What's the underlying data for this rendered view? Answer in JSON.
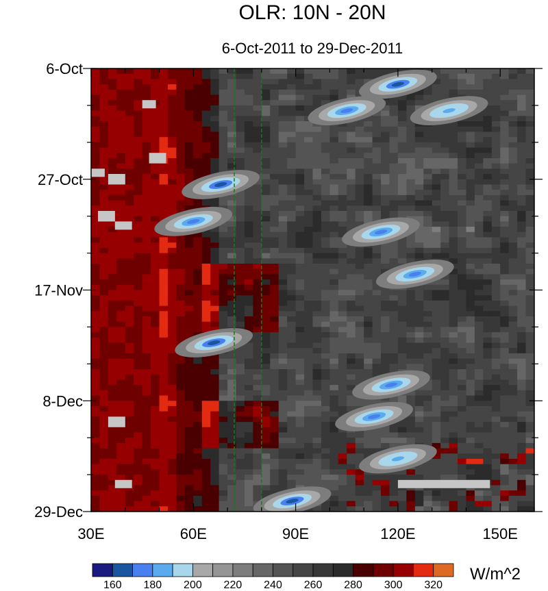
{
  "chart_data": {
    "type": "heatmap",
    "title": "OLR: 10N - 20N",
    "subtitle": "6-Oct-2011 to 29-Dec-2011",
    "x_axis": {
      "range": [
        30,
        160
      ],
      "ticks": [
        {
          "value": 30,
          "label": "30E"
        },
        {
          "value": 60,
          "label": "60E"
        },
        {
          "value": 90,
          "label": "90E"
        },
        {
          "value": 120,
          "label": "120E"
        },
        {
          "value": 150,
          "label": "150E"
        }
      ]
    },
    "y_axis": {
      "range": [
        "2011-10-06",
        "2011-12-29"
      ],
      "ticks": [
        {
          "value": "2011-10-06",
          "label": "6-Oct"
        },
        {
          "value": "2011-10-27",
          "label": "27-Oct"
        },
        {
          "value": "2011-11-17",
          "label": "17-Nov"
        },
        {
          "value": "2011-12-08",
          "label": "8-Dec"
        },
        {
          "value": "2011-12-29",
          "label": "29-Dec"
        }
      ]
    },
    "reference_lines": [
      {
        "axis": "x",
        "value": 72,
        "style": "dashed",
        "color": "#1a7a1a"
      },
      {
        "axis": "x",
        "value": 80,
        "style": "dashed",
        "color": "#1a7a1a"
      }
    ],
    "colorbar": {
      "units": "W/m^2",
      "levels": [
        150,
        160,
        170,
        180,
        190,
        200,
        210,
        220,
        230,
        240,
        250,
        260,
        270,
        280,
        290,
        300,
        310,
        320,
        330
      ],
      "colors": [
        "#1a1a80",
        "#1a55a0",
        "#4a7ff0",
        "#5aaaee",
        "#a8d6ea",
        "#a8a8a8",
        "#959595",
        "#7d7d7d",
        "#666666",
        "#545454",
        "#454545",
        "#383838",
        "#2b2b2b",
        "#4a0000",
        "#6e0000",
        "#960000",
        "#e22b10",
        "#dd6a22"
      ],
      "labeled_ticks": [
        160,
        180,
        200,
        220,
        240,
        260,
        280,
        300,
        320
      ]
    },
    "features": [
      {
        "kind": "blob",
        "lon": 120,
        "date": "2011-10-09",
        "value": 165
      },
      {
        "kind": "blob",
        "lon": 135,
        "date": "2011-10-14",
        "value": 180
      },
      {
        "kind": "blob",
        "lon": 105,
        "date": "2011-10-14",
        "value": 175
      },
      {
        "kind": "blob",
        "lon": 68,
        "date": "2011-10-28",
        "value": 168
      },
      {
        "kind": "blob",
        "lon": 60,
        "date": "2011-11-04",
        "value": 178
      },
      {
        "kind": "blob",
        "lon": 115,
        "date": "2011-11-06",
        "value": 170
      },
      {
        "kind": "blob",
        "lon": 125,
        "date": "2011-11-14",
        "value": 178
      },
      {
        "kind": "blob",
        "lon": 66,
        "date": "2011-11-27",
        "value": 160
      },
      {
        "kind": "blob",
        "lon": 118,
        "date": "2011-12-05",
        "value": 172
      },
      {
        "kind": "blob",
        "lon": 113,
        "date": "2011-12-11",
        "value": 175
      },
      {
        "kind": "blob",
        "lon": 120,
        "date": "2011-12-19",
        "value": 182
      },
      {
        "kind": "blob",
        "lon": 89,
        "date": "2011-12-27",
        "value": 168
      }
    ],
    "missing_data_boxes": [
      {
        "lon": [
          45,
          49
        ],
        "date": [
          "2011-10-12",
          "2011-10-13"
        ]
      },
      {
        "lon": [
          47,
          52
        ],
        "date": [
          "2011-10-22",
          "2011-10-24"
        ]
      },
      {
        "lon": [
          30,
          34
        ],
        "date": [
          "2011-10-25",
          "2011-10-26"
        ]
      },
      {
        "lon": [
          35,
          40
        ],
        "date": [
          "2011-10-26",
          "2011-10-28"
        ]
      },
      {
        "lon": [
          32,
          37
        ],
        "date": [
          "2011-11-02",
          "2011-11-04"
        ]
      },
      {
        "lon": [
          37,
          42
        ],
        "date": [
          "2011-11-04",
          "2011-11-05"
        ]
      },
      {
        "lon": [
          35,
          40
        ],
        "date": [
          "2011-12-11",
          "2011-12-13"
        ]
      },
      {
        "lon": [
          37,
          42
        ],
        "date": [
          "2011-12-23",
          "2011-12-24"
        ]
      },
      {
        "lon": [
          120,
          147
        ],
        "date": [
          "2011-12-23",
          "2011-12-24"
        ]
      }
    ]
  }
}
